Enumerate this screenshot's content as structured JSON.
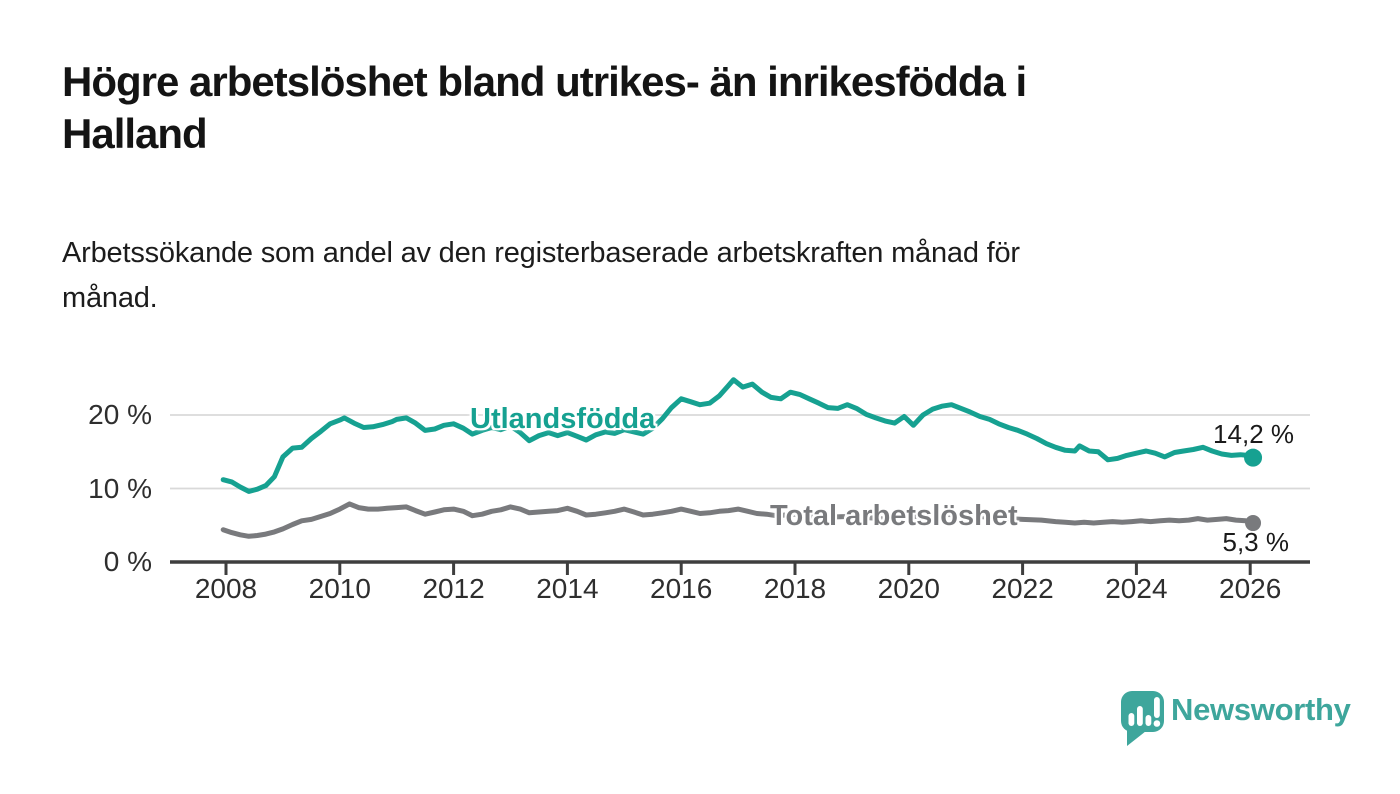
{
  "header": {
    "title_line1": "Högre arbetslöshet bland utrikes- än inrikesfödda i",
    "title_line2": "Halland",
    "subtitle_line1": "Arbetssökande som andel av den registerbaserade arbetskraften månad för",
    "subtitle_line2": "månad."
  },
  "chart_data": {
    "type": "line",
    "title": "Högre arbetslöshet bland utrikes- än inrikesfödda i Halland",
    "subtitle": "Arbetssökande som andel av den registerbaserade arbetskraften månad för månad.",
    "unit": "%",
    "axis_color": "#3e3e3e",
    "grid_color": "#d9d9d9",
    "y_axis": {
      "range": [
        0,
        26
      ],
      "gridline_values": [
        10,
        20
      ],
      "ticks": [
        {
          "label": "20 %",
          "value": 20
        },
        {
          "label": "10 %",
          "value": 10
        },
        {
          "label": "0 %",
          "value": 0
        }
      ]
    },
    "x_axis": {
      "range": [
        2007,
        2027
      ],
      "ticks": [
        {
          "label": "2008",
          "value": 2008
        },
        {
          "label": "2010",
          "value": 2010
        },
        {
          "label": "2012",
          "value": 2012
        },
        {
          "label": "2014",
          "value": 2014
        },
        {
          "label": "2016",
          "value": 2016
        },
        {
          "label": "2018",
          "value": 2018
        },
        {
          "label": "2020",
          "value": 2020
        },
        {
          "label": "2022",
          "value": 2022
        },
        {
          "label": "2024",
          "value": 2024
        },
        {
          "label": "2026",
          "value": 2026
        }
      ]
    },
    "series": [
      {
        "name": "Utlandsfödda",
        "color": "#16a191",
        "end_label": "14,2 %",
        "end_value": 14.2,
        "points": [
          [
            2007.95,
            11.2
          ],
          [
            2008.1,
            10.9
          ],
          [
            2008.25,
            10.2
          ],
          [
            2008.4,
            9.6
          ],
          [
            2008.55,
            9.9
          ],
          [
            2008.7,
            10.4
          ],
          [
            2008.85,
            11.6
          ],
          [
            2009.0,
            14.3
          ],
          [
            2009.17,
            15.5
          ],
          [
            2009.33,
            15.6
          ],
          [
            2009.5,
            16.8
          ],
          [
            2009.67,
            17.8
          ],
          [
            2009.83,
            18.8
          ],
          [
            2010.0,
            19.3
          ],
          [
            2010.08,
            19.6
          ],
          [
            2010.25,
            18.9
          ],
          [
            2010.42,
            18.3
          ],
          [
            2010.58,
            18.4
          ],
          [
            2010.75,
            18.7
          ],
          [
            2010.92,
            19.1
          ],
          [
            2011.0,
            19.4
          ],
          [
            2011.17,
            19.6
          ],
          [
            2011.33,
            18.9
          ],
          [
            2011.5,
            17.9
          ],
          [
            2011.67,
            18.1
          ],
          [
            2011.83,
            18.6
          ],
          [
            2012.0,
            18.8
          ],
          [
            2012.17,
            18.2
          ],
          [
            2012.33,
            17.4
          ],
          [
            2012.5,
            17.9
          ],
          [
            2012.67,
            18.3
          ],
          [
            2012.83,
            18.0
          ],
          [
            2013.0,
            18.5
          ],
          [
            2013.17,
            17.6
          ],
          [
            2013.33,
            16.5
          ],
          [
            2013.5,
            17.2
          ],
          [
            2013.67,
            17.6
          ],
          [
            2013.83,
            17.2
          ],
          [
            2014.0,
            17.6
          ],
          [
            2014.17,
            17.1
          ],
          [
            2014.33,
            16.6
          ],
          [
            2014.5,
            17.3
          ],
          [
            2014.67,
            17.7
          ],
          [
            2014.83,
            17.5
          ],
          [
            2015.0,
            18.0
          ],
          [
            2015.17,
            17.7
          ],
          [
            2015.33,
            17.4
          ],
          [
            2015.5,
            18.2
          ],
          [
            2015.67,
            19.5
          ],
          [
            2015.83,
            21.0
          ],
          [
            2016.0,
            22.2
          ],
          [
            2016.17,
            21.8
          ],
          [
            2016.33,
            21.4
          ],
          [
            2016.5,
            21.6
          ],
          [
            2016.67,
            22.6
          ],
          [
            2016.83,
            24.0
          ],
          [
            2016.92,
            24.8
          ],
          [
            2017.08,
            23.8
          ],
          [
            2017.25,
            24.2
          ],
          [
            2017.42,
            23.1
          ],
          [
            2017.58,
            22.4
          ],
          [
            2017.75,
            22.2
          ],
          [
            2017.92,
            23.1
          ],
          [
            2018.08,
            22.8
          ],
          [
            2018.25,
            22.2
          ],
          [
            2018.42,
            21.6
          ],
          [
            2018.58,
            21.0
          ],
          [
            2018.75,
            20.9
          ],
          [
            2018.92,
            21.4
          ],
          [
            2019.08,
            20.9
          ],
          [
            2019.25,
            20.1
          ],
          [
            2019.42,
            19.6
          ],
          [
            2019.58,
            19.2
          ],
          [
            2019.75,
            18.9
          ],
          [
            2019.92,
            19.8
          ],
          [
            2020.08,
            18.6
          ],
          [
            2020.25,
            20.0
          ],
          [
            2020.42,
            20.8
          ],
          [
            2020.58,
            21.2
          ],
          [
            2020.75,
            21.4
          ],
          [
            2020.92,
            20.9
          ],
          [
            2021.08,
            20.4
          ],
          [
            2021.25,
            19.8
          ],
          [
            2021.42,
            19.4
          ],
          [
            2021.58,
            18.8
          ],
          [
            2021.75,
            18.3
          ],
          [
            2021.92,
            17.9
          ],
          [
            2022.08,
            17.4
          ],
          [
            2022.25,
            16.8
          ],
          [
            2022.42,
            16.1
          ],
          [
            2022.58,
            15.6
          ],
          [
            2022.75,
            15.2
          ],
          [
            2022.92,
            15.1
          ],
          [
            2023.0,
            15.8
          ],
          [
            2023.17,
            15.1
          ],
          [
            2023.33,
            15.0
          ],
          [
            2023.5,
            13.9
          ],
          [
            2023.67,
            14.1
          ],
          [
            2023.83,
            14.5
          ],
          [
            2024.0,
            14.8
          ],
          [
            2024.17,
            15.1
          ],
          [
            2024.33,
            14.8
          ],
          [
            2024.5,
            14.3
          ],
          [
            2024.67,
            14.9
          ],
          [
            2024.83,
            15.1
          ],
          [
            2025.0,
            15.3
          ],
          [
            2025.17,
            15.6
          ],
          [
            2025.33,
            15.1
          ],
          [
            2025.5,
            14.7
          ],
          [
            2025.67,
            14.5
          ],
          [
            2025.83,
            14.6
          ],
          [
            2025.95,
            14.5
          ],
          [
            2026.05,
            14.2
          ]
        ]
      },
      {
        "name": "Total arbetslöshet",
        "color": "#797a7d",
        "end_label": "5,3 %",
        "end_value": 5.3,
        "points": [
          [
            2007.95,
            4.4
          ],
          [
            2008.1,
            4.0
          ],
          [
            2008.25,
            3.7
          ],
          [
            2008.4,
            3.5
          ],
          [
            2008.55,
            3.6
          ],
          [
            2008.7,
            3.8
          ],
          [
            2008.85,
            4.1
          ],
          [
            2009.0,
            4.5
          ],
          [
            2009.17,
            5.1
          ],
          [
            2009.33,
            5.6
          ],
          [
            2009.5,
            5.8
          ],
          [
            2009.67,
            6.2
          ],
          [
            2009.83,
            6.6
          ],
          [
            2010.0,
            7.2
          ],
          [
            2010.17,
            7.9
          ],
          [
            2010.33,
            7.4
          ],
          [
            2010.5,
            7.2
          ],
          [
            2010.67,
            7.2
          ],
          [
            2010.83,
            7.3
          ],
          [
            2011.0,
            7.4
          ],
          [
            2011.17,
            7.5
          ],
          [
            2011.33,
            7.0
          ],
          [
            2011.5,
            6.5
          ],
          [
            2011.67,
            6.8
          ],
          [
            2011.83,
            7.1
          ],
          [
            2012.0,
            7.2
          ],
          [
            2012.17,
            6.9
          ],
          [
            2012.33,
            6.3
          ],
          [
            2012.5,
            6.5
          ],
          [
            2012.67,
            6.9
          ],
          [
            2012.83,
            7.1
          ],
          [
            2013.0,
            7.5
          ],
          [
            2013.17,
            7.2
          ],
          [
            2013.33,
            6.7
          ],
          [
            2013.5,
            6.8
          ],
          [
            2013.67,
            6.9
          ],
          [
            2013.83,
            7.0
          ],
          [
            2014.0,
            7.3
          ],
          [
            2014.17,
            6.9
          ],
          [
            2014.33,
            6.4
          ],
          [
            2014.5,
            6.5
          ],
          [
            2014.67,
            6.7
          ],
          [
            2014.83,
            6.9
          ],
          [
            2015.0,
            7.2
          ],
          [
            2015.17,
            6.8
          ],
          [
            2015.33,
            6.4
          ],
          [
            2015.5,
            6.5
          ],
          [
            2015.67,
            6.7
          ],
          [
            2015.83,
            6.9
          ],
          [
            2016.0,
            7.2
          ],
          [
            2016.17,
            6.9
          ],
          [
            2016.33,
            6.6
          ],
          [
            2016.5,
            6.7
          ],
          [
            2016.67,
            6.9
          ],
          [
            2016.83,
            7.0
          ],
          [
            2017.0,
            7.2
          ],
          [
            2017.17,
            6.9
          ],
          [
            2017.33,
            6.6
          ],
          [
            2017.5,
            6.5
          ],
          [
            2017.67,
            6.3
          ],
          [
            2018.0,
            6.5
          ],
          [
            2018.5,
            6.1
          ],
          [
            2019.0,
            6.2
          ],
          [
            2019.5,
            5.9
          ],
          [
            2020.0,
            6.1
          ],
          [
            2020.5,
            6.5
          ],
          [
            2021.0,
            6.4
          ],
          [
            2021.5,
            6.0
          ],
          [
            2022.0,
            5.8
          ],
          [
            2022.33,
            5.7
          ],
          [
            2022.58,
            5.5
          ],
          [
            2022.75,
            5.4
          ],
          [
            2022.92,
            5.3
          ],
          [
            2023.08,
            5.4
          ],
          [
            2023.25,
            5.3
          ],
          [
            2023.42,
            5.4
          ],
          [
            2023.58,
            5.5
          ],
          [
            2023.75,
            5.4
          ],
          [
            2023.92,
            5.5
          ],
          [
            2024.08,
            5.6
          ],
          [
            2024.25,
            5.5
          ],
          [
            2024.42,
            5.6
          ],
          [
            2024.58,
            5.7
          ],
          [
            2024.75,
            5.6
          ],
          [
            2024.92,
            5.7
          ],
          [
            2025.08,
            5.9
          ],
          [
            2025.25,
            5.7
          ],
          [
            2025.42,
            5.8
          ],
          [
            2025.58,
            5.9
          ],
          [
            2025.75,
            5.7
          ],
          [
            2025.92,
            5.6
          ],
          [
            2026.05,
            5.3
          ]
        ]
      }
    ]
  },
  "footer": {
    "brand": "Newsworthy",
    "brand_color": "#3ea69c"
  }
}
